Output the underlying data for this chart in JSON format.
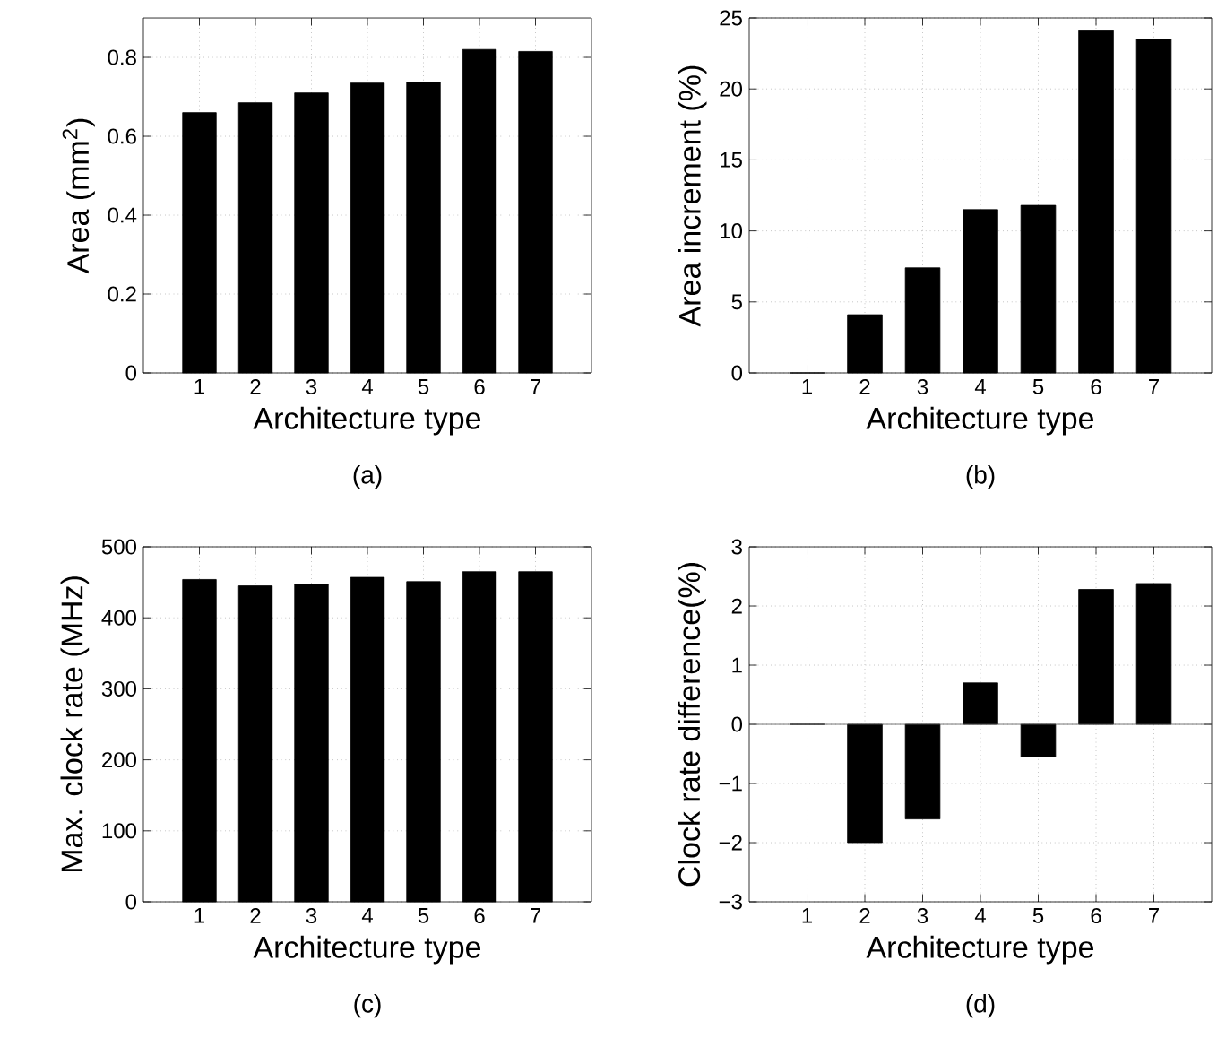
{
  "chart_data": [
    {
      "type": "bar",
      "xlabel": "Architecture type",
      "ylabel": "Area (mm$^{2}$)",
      "categories": [
        "1",
        "2",
        "3",
        "4",
        "5",
        "6",
        "7"
      ],
      "values": [
        0.66,
        0.685,
        0.71,
        0.735,
        0.737,
        0.82,
        0.815
      ],
      "color": "#000000",
      "ylim": [
        0,
        0.9
      ],
      "yticks": [
        0,
        0.2,
        0.4,
        0.6,
        0.8
      ],
      "grid": true,
      "annotations": [
        "(a)"
      ]
    },
    {
      "type": "bar",
      "xlabel": "Architecture type",
      "ylabel": "Area increment (%)",
      "categories": [
        "1",
        "2",
        "3",
        "4",
        "5",
        "6",
        "7"
      ],
      "values": [
        0,
        4.1,
        7.4,
        11.5,
        11.8,
        24.1,
        23.5
      ],
      "color": "#000000",
      "ylim": [
        0,
        25
      ],
      "yticks": [
        0,
        5,
        10,
        15,
        20,
        25
      ],
      "grid": true,
      "annotations": [
        "(b)"
      ]
    },
    {
      "type": "bar",
      "xlabel": "Architecture type",
      "ylabel": "Max. clock rate (MHz)",
      "categories": [
        "1",
        "2",
        "3",
        "4",
        "5",
        "6",
        "7"
      ],
      "values": [
        454,
        445,
        447,
        457,
        451,
        465,
        465
      ],
      "color": "#000000",
      "ylim": [
        0,
        500
      ],
      "yticks": [
        0,
        100,
        200,
        300,
        400,
        500
      ],
      "grid": true,
      "annotations": [
        "(c)"
      ]
    },
    {
      "type": "bar",
      "xlabel": "Architecture type",
      "ylabel": "Clock rate difference(%)",
      "categories": [
        "1",
        "2",
        "3",
        "4",
        "5",
        "6",
        "7"
      ],
      "values": [
        0,
        -2.0,
        -1.6,
        0.7,
        -0.55,
        2.28,
        2.38
      ],
      "color": "#000000",
      "ylim": [
        -3,
        3
      ],
      "yticks": [
        {
          "value": -3,
          "label": "−3"
        },
        {
          "value": -2,
          "label": "−2"
        },
        {
          "value": -1,
          "label": "−1"
        },
        0,
        1,
        2,
        3
      ],
      "grid": true,
      "ref_lines": [
        {
          "axis": "y",
          "value": 0,
          "color": "#555555"
        }
      ],
      "annotations": [
        "(d)"
      ]
    }
  ]
}
